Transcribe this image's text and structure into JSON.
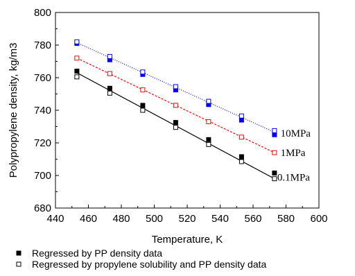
{
  "chart_data": {
    "type": "scatter",
    "xlabel": "Temperature, K",
    "ylabel": "Polypropylene density, kg/m3",
    "xlim": [
      440,
      600
    ],
    "ylim": [
      680,
      800
    ],
    "xticks": [
      440,
      460,
      480,
      500,
      520,
      540,
      560,
      580,
      600
    ],
    "yticks": [
      680,
      700,
      720,
      740,
      760,
      780,
      800
    ],
    "grid": false,
    "x": [
      453,
      473,
      493,
      513,
      533,
      553,
      573
    ],
    "series": [
      {
        "name": "Regressed by PP density data",
        "group": "10MPa",
        "marker": "filled-square",
        "color": "#0000ff",
        "values": [
          781,
          771,
          762,
          752.5,
          743.5,
          734,
          725
        ]
      },
      {
        "name": "Regressed by propylene solubility and PP density data",
        "group": "10MPa",
        "marker": "open-square",
        "color": "#0000ff",
        "values": [
          782,
          773,
          763.5,
          754.5,
          745.5,
          736.5,
          727.5
        ]
      },
      {
        "name": "Regressed by propylene solubility and PP density data",
        "group": "1MPa",
        "marker": "open-square",
        "color": "#ff0000",
        "values": [
          772,
          762.5,
          752.5,
          743,
          733,
          723.5,
          714
        ]
      },
      {
        "name": "Regressed by PP density data",
        "group": "0.1MPa",
        "marker": "filled-square",
        "color": "#000000",
        "values": [
          764,
          753.5,
          743,
          732.5,
          722,
          711.5,
          701.5
        ]
      },
      {
        "name": "Regressed by propylene solubility and PP density data",
        "group": "0.1MPa",
        "marker": "open-square",
        "color": "#000000",
        "values": [
          760.5,
          750.5,
          740,
          729.5,
          719,
          708.5,
          698
        ]
      }
    ],
    "fit_lines": [
      {
        "group": "10MPa",
        "style": "dotted",
        "color": "#0000ff",
        "x": [
          453,
          573
        ],
        "y": [
          781.5,
          726.5
        ]
      },
      {
        "group": "1MPa",
        "style": "dashed",
        "color": "#ff0000",
        "x": [
          453,
          573
        ],
        "y": [
          772,
          714
        ]
      },
      {
        "group": "0.1MPa",
        "style": "solid",
        "color": "#000000",
        "x": [
          453,
          573
        ],
        "y": [
          763,
          698
        ]
      }
    ],
    "annotations": [
      {
        "text": "10MPa",
        "x": 575,
        "y": 726
      },
      {
        "text": "1MPa",
        "x": 575,
        "y": 714
      },
      {
        "text": "0.1MPa",
        "x": 573,
        "y": 699
      }
    ],
    "legend": [
      {
        "marker": "filled-square",
        "label": "Regressed by PP density data"
      },
      {
        "marker": "open-square",
        "label": "Regressed by propylene solubility and PP density data"
      }
    ],
    "legend_placement": "bottom"
  }
}
